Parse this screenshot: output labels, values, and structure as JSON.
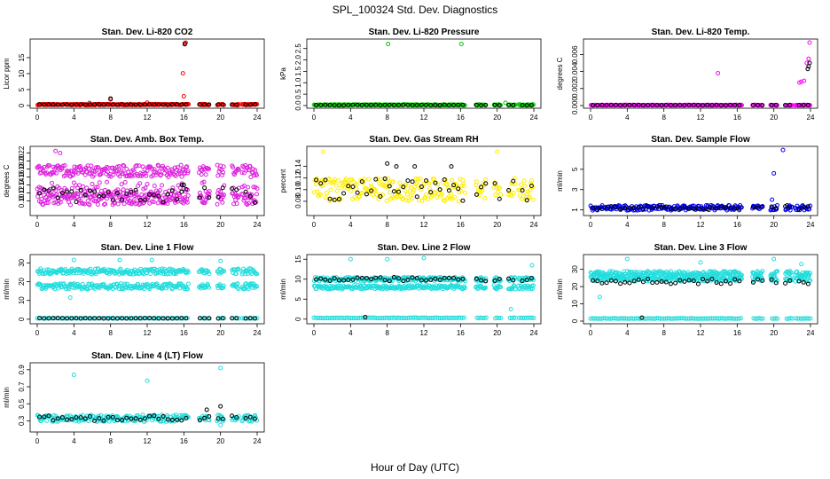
{
  "figure": {
    "title": "SPL_100324  Std. Dev. Diagnostics",
    "xlabel": "Hour of Day (UTC)"
  },
  "chart_data": [
    {
      "type": "scatter",
      "title": "Stan. Dev. Li-820 CO2",
      "ylabel": "Licor ppm",
      "xlim": [
        0,
        24
      ],
      "xticks": [
        0,
        4,
        8,
        12,
        16,
        20,
        24
      ],
      "ylim": [
        0,
        20
      ],
      "yticks": [
        0,
        5,
        10,
        15
      ],
      "color": "#ff0000",
      "baseline": 0.3,
      "spread": 0.15,
      "spikes": [
        [
          16.1,
          19.5
        ],
        [
          16.2,
          19.7
        ],
        [
          15.9,
          10.1
        ],
        [
          16.0,
          2.9
        ],
        [
          8.0,
          1.9
        ],
        [
          12.0,
          0.9
        ],
        [
          5.7,
          0.8
        ]
      ],
      "black_level": 0.3,
      "black_spread": 0.05,
      "black_spikes": [
        [
          8.0,
          2.2
        ],
        [
          16.1,
          19.2
        ]
      ]
    },
    {
      "type": "scatter",
      "title": "Stan. Dev. Li-820 Pressure",
      "ylabel": "kPa",
      "xlim": [
        0,
        24
      ],
      "xticks": [
        0,
        4,
        8,
        12,
        16,
        20,
        24
      ],
      "ylim": [
        0,
        2.8
      ],
      "yticks": [
        0.0,
        0.5,
        1.0,
        1.5,
        2.0,
        2.5
      ],
      "ytick_labels": [
        "0.0",
        "0.5",
        "1.0",
        "1.5",
        "2.0",
        "2.5"
      ],
      "color": "#00cc00",
      "baseline": 0.03,
      "spread": 0.02,
      "spikes": [
        [
          8.1,
          2.7
        ],
        [
          16.1,
          2.7
        ],
        [
          20.9,
          0.12
        ],
        [
          23.9,
          0.05
        ]
      ],
      "black_level": 0.02,
      "black_spread": 0.01,
      "black_spikes": []
    },
    {
      "type": "scatter",
      "title": "Stan. Dev. Li-820 Temp.",
      "ylabel": "degrees C",
      "xlim": [
        0,
        24
      ],
      "xticks": [
        0,
        4,
        8,
        12,
        16,
        20,
        24
      ],
      "ylim": [
        0,
        0.0075
      ],
      "yticks": [
        0.0,
        0.002,
        0.004,
        0.006
      ],
      "ytick_labels": [
        "0.000",
        "0.002",
        "0.004",
        "0.006"
      ],
      "color": "#ff00ff",
      "baseline": 5e-05,
      "spread": 3e-05,
      "spikes": [
        [
          13.9,
          0.0038
        ],
        [
          22.8,
          0.0027
        ],
        [
          23.0,
          0.0028
        ],
        [
          23.3,
          0.0029
        ],
        [
          23.6,
          0.005
        ],
        [
          23.9,
          0.0074
        ],
        [
          23.8,
          0.0055
        ]
      ],
      "black_level": 5e-05,
      "black_spread": 2e-05,
      "black_spikes": [
        [
          23.7,
          0.0043
        ],
        [
          23.8,
          0.0046
        ],
        [
          23.9,
          0.005
        ]
      ]
    },
    {
      "type": "scatter",
      "title": "Stan. Dev. Amb. Box Temp.",
      "ylabel": "degrees C",
      "xlim": [
        0,
        24
      ],
      "xticks": [
        0,
        4,
        8,
        12,
        16,
        20,
        24
      ],
      "ylim": [
        0.07,
        0.23
      ],
      "yticks": [
        0.1,
        0.12,
        0.14,
        0.16,
        0.18,
        0.2,
        0.22
      ],
      "ytick_labels": [
        "0.10",
        "0.12",
        "0.14",
        "0.16",
        "0.18",
        "0.20",
        "0.22"
      ],
      "color": "#dd22dd",
      "baseline": 0.13,
      "spread": 0.035,
      "bands": [
        [
          0.16,
          0.19
        ],
        [
          0.09,
          0.12
        ]
      ],
      "spikes": [
        [
          2.0,
          0.225
        ],
        [
          2.5,
          0.22
        ]
      ],
      "black_level": 0.115,
      "black_spread": 0.02,
      "black_spikes": [
        [
          15.8,
          0.14
        ],
        [
          16.0,
          0.14
        ]
      ]
    },
    {
      "type": "scatter",
      "title": "Stan. Dev. Gas Stream RH",
      "ylabel": "percent",
      "xlim": [
        0,
        24
      ],
      "xticks": [
        0,
        4,
        8,
        12,
        16,
        20,
        24
      ],
      "ylim": [
        0.06,
        0.17
      ],
      "yticks": [
        0.08,
        0.1,
        0.12,
        0.14
      ],
      "ytick_labels": [
        "0.08",
        "0.10",
        "0.12",
        "0.14"
      ],
      "color": "#ffee00",
      "baseline": 0.1,
      "spread": 0.02,
      "spikes": [
        [
          1.0,
          0.165
        ],
        [
          20.0,
          0.165
        ]
      ],
      "black_level": 0.1,
      "black_spread": 0.02,
      "black_spikes": [
        [
          8.0,
          0.145
        ],
        [
          9.0,
          0.14
        ],
        [
          11.0,
          0.14
        ],
        [
          15.0,
          0.14
        ]
      ]
    },
    {
      "type": "scatter",
      "title": "Stan. Dev. Sample Flow",
      "ylabel": "ml/min",
      "xlim": [
        0,
        24
      ],
      "xticks": [
        0,
        4,
        8,
        12,
        16,
        20,
        24
      ],
      "ylim": [
        0.7,
        7
      ],
      "yticks": [
        1,
        3,
        5
      ],
      "color": "#0000ee",
      "baseline": 1.2,
      "spread": 0.25,
      "spikes": [
        [
          20.0,
          4.6
        ],
        [
          21.0,
          6.9
        ],
        [
          19.8,
          2.0
        ]
      ],
      "black_level": 1.2,
      "black_spread": 0.15,
      "black_spikes": []
    },
    {
      "type": "scatter",
      "title": "Stan. Dev. Line 1 Flow",
      "ylabel": "ml/min",
      "xlim": [
        0,
        24
      ],
      "xticks": [
        0,
        4,
        8,
        12,
        16,
        20,
        24
      ],
      "ylim": [
        -1,
        33
      ],
      "yticks": [
        0,
        10,
        20,
        30
      ],
      "color": "#22dddd",
      "baseline": 0.5,
      "spread": 0.2,
      "bands": [
        [
          24,
          27
        ],
        [
          16,
          19
        ]
      ],
      "spikes": [
        [
          4.0,
          31.5
        ],
        [
          9.0,
          31.5
        ],
        [
          12.5,
          31.5
        ],
        [
          20.0,
          31
        ],
        [
          3.6,
          11.5
        ]
      ],
      "black_level": 0.5,
      "black_spread": 0.1,
      "black_spikes": []
    },
    {
      "type": "scatter",
      "title": "Stan. Dev. Line 2 Flow",
      "ylabel": "ml/min",
      "xlim": [
        0,
        24
      ],
      "xticks": [
        0,
        4,
        8,
        12,
        16,
        20,
        24
      ],
      "ylim": [
        -0.5,
        15.5
      ],
      "yticks": [
        0,
        5,
        10,
        15
      ],
      "color": "#22dddd",
      "baseline": 0.3,
      "spread": 0.15,
      "bands": [
        [
          9.5,
          10.5
        ],
        [
          7.5,
          8.5
        ]
      ],
      "spikes": [
        [
          4.0,
          15
        ],
        [
          8.0,
          15
        ],
        [
          12.0,
          15.3
        ],
        [
          23.8,
          13.5
        ],
        [
          21.5,
          2.5
        ]
      ],
      "black_level": 10.0,
      "black_spread": 0.5,
      "black_spikes": [
        [
          5.6,
          0.5
        ]
      ]
    },
    {
      "type": "scatter",
      "title": "Stan. Dev. Line 3 Flow",
      "ylabel": "ml/min",
      "xlim": [
        0,
        24
      ],
      "xticks": [
        0,
        4,
        8,
        12,
        16,
        20,
        24
      ],
      "ylim": [
        0,
        37
      ],
      "yticks": [
        0,
        10,
        20,
        30
      ],
      "color": "#22dddd",
      "baseline": 1.5,
      "spread": 0.3,
      "bands": [
        [
          26,
          29
        ],
        [
          23,
          26
        ]
      ],
      "spikes": [
        [
          4.0,
          36
        ],
        [
          12.0,
          34
        ],
        [
          20.0,
          36
        ],
        [
          23.0,
          33
        ],
        [
          1.0,
          14
        ]
      ],
      "black_level": 23.0,
      "black_spread": 1.5,
      "black_spikes": [
        [
          5.6,
          2.0
        ]
      ]
    },
    {
      "type": "scatter",
      "title": "Stan. Dev. Line 4 (LT) Flow",
      "ylabel": "ml/min",
      "xlim": [
        0,
        24
      ],
      "xticks": [
        0,
        4,
        8,
        12,
        16,
        20,
        24
      ],
      "ylim": [
        0.2,
        0.95
      ],
      "yticks": [
        0.3,
        0.5,
        0.7,
        0.9
      ],
      "ytick_labels": [
        "0.3",
        "0.5",
        "0.7",
        "0.9"
      ],
      "color": "#22dddd",
      "baseline": 0.33,
      "spread": 0.04,
      "spikes": [
        [
          4.0,
          0.84
        ],
        [
          12.0,
          0.77
        ],
        [
          20.0,
          0.92
        ],
        [
          20.0,
          0.25
        ]
      ],
      "black_level": 0.33,
      "black_spread": 0.03,
      "black_spikes": [
        [
          18.5,
          0.43
        ],
        [
          20.0,
          0.47
        ]
      ]
    }
  ]
}
